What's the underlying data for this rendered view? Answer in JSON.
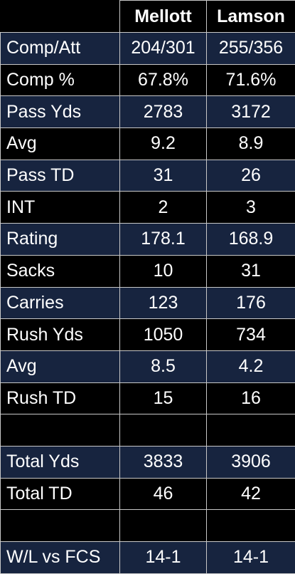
{
  "table": {
    "headers": [
      "",
      "Mellott",
      "Lamson"
    ],
    "rows": [
      {
        "label": "Comp/Att",
        "mellott": "204/301",
        "lamson": "255/356",
        "shaded": true
      },
      {
        "label": "Comp %",
        "mellott": "67.8%",
        "lamson": "71.6%",
        "shaded": false
      },
      {
        "label": "Pass Yds",
        "mellott": "2783",
        "lamson": "3172",
        "shaded": true
      },
      {
        "label": "Avg",
        "mellott": "9.2",
        "lamson": "8.9",
        "shaded": false
      },
      {
        "label": "Pass TD",
        "mellott": "31",
        "lamson": "26",
        "shaded": true
      },
      {
        "label": "INT",
        "mellott": "2",
        "lamson": "3",
        "shaded": false
      },
      {
        "label": "Rating",
        "mellott": "178.1",
        "lamson": "168.9",
        "shaded": true
      },
      {
        "label": "Sacks",
        "mellott": "10",
        "lamson": "31",
        "shaded": false
      },
      {
        "label": "Carries",
        "mellott": "123",
        "lamson": "176",
        "shaded": true
      },
      {
        "label": "Rush Yds",
        "mellott": "1050",
        "lamson": "734",
        "shaded": false
      },
      {
        "label": "Avg",
        "mellott": "8.5",
        "lamson": "4.2",
        "shaded": true
      },
      {
        "label": "Rush TD",
        "mellott": "15",
        "lamson": "16",
        "shaded": false
      },
      {
        "label": "",
        "mellott": "",
        "lamson": "",
        "shaded": false
      },
      {
        "label": "Total Yds",
        "mellott": "3833",
        "lamson": "3906",
        "shaded": true
      },
      {
        "label": "Total TD",
        "mellott": "46",
        "lamson": "42",
        "shaded": false
      },
      {
        "label": "",
        "mellott": "",
        "lamson": "",
        "shaded": false
      },
      {
        "label": "W/L vs FCS",
        "mellott": "14-1",
        "lamson": "14-1",
        "shaded": true
      }
    ]
  },
  "colors": {
    "background": "#000000",
    "shaded_row": "#17243f",
    "text": "#ffffff",
    "grid": "#c8c8c8"
  }
}
